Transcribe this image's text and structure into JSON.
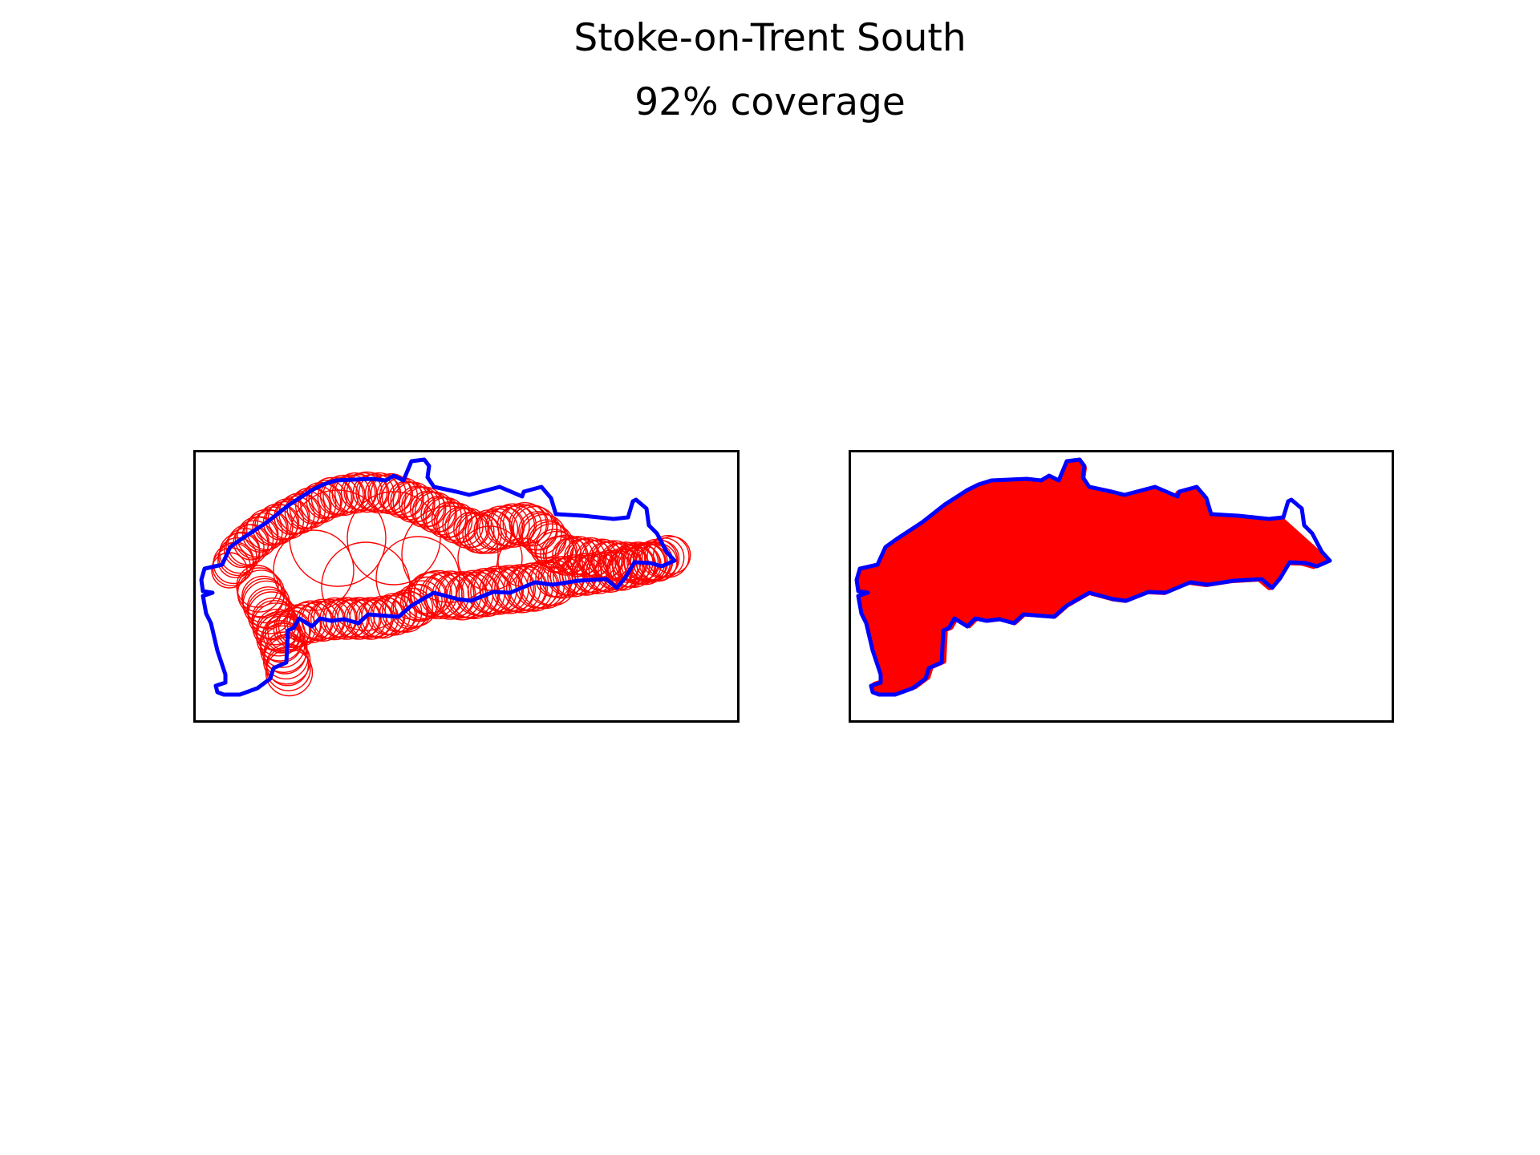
{
  "figure": {
    "title": "Stoke-on-Trent South",
    "subtitle": "92% coverage"
  },
  "colors": {
    "boundary": "#0000ff",
    "coverage": "#ff0000",
    "frame": "#000000",
    "background": "#ffffff"
  },
  "panels": [
    {
      "name": "circle-outlines",
      "style": "outlined circles"
    },
    {
      "name": "filled-union",
      "style": "filled"
    }
  ]
}
